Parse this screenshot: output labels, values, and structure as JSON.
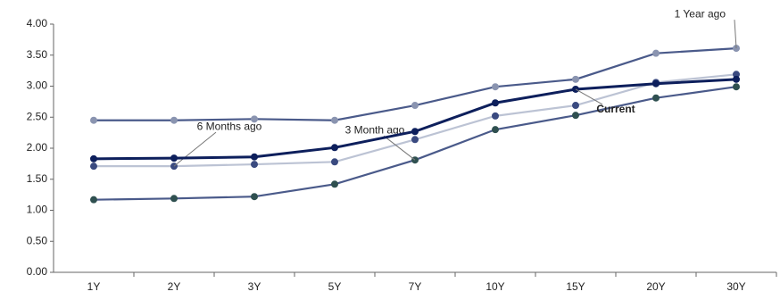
{
  "chart_data": {
    "type": "line",
    "categories": [
      "1Y",
      "2Y",
      "3Y",
      "5Y",
      "7Y",
      "10Y",
      "15Y",
      "20Y",
      "30Y"
    ],
    "ylim": [
      0,
      4
    ],
    "yticks": [
      {
        "value": 0,
        "label": "0.00"
      },
      {
        "value": 0.5,
        "label": "0.50"
      },
      {
        "value": 1,
        "label": "1.00"
      },
      {
        "value": 1.5,
        "label": "1.50"
      },
      {
        "value": 2,
        "label": "2.00"
      },
      {
        "value": 2.5,
        "label": "2.50"
      },
      {
        "value": 3,
        "label": "3.00"
      },
      {
        "value": 3.5,
        "label": "3.50"
      },
      {
        "value": 4,
        "label": "4.00"
      }
    ],
    "series": [
      {
        "name": "1 Year ago",
        "color": "#4a5a8a",
        "marker_color": "#8a94b0",
        "values": [
          2.45,
          2.45,
          2.47,
          2.45,
          2.69,
          2.99,
          3.11,
          3.53,
          3.61
        ]
      },
      {
        "name": "6 Months ago",
        "color": "#bcc3d4",
        "marker_color": "#3a4a80",
        "values": [
          1.71,
          1.71,
          1.74,
          1.78,
          2.14,
          2.52,
          2.69,
          3.06,
          3.19
        ]
      },
      {
        "name": "3 Month ago",
        "color": "#4a5a8a",
        "marker_color": "#2f5050",
        "values": [
          1.17,
          1.19,
          1.22,
          1.42,
          1.81,
          2.3,
          2.53,
          2.81,
          2.99
        ]
      },
      {
        "name": "Current",
        "color": "#0d1f5c",
        "marker_color": "#0d1f5c",
        "values": [
          1.83,
          1.84,
          1.86,
          2.01,
          2.27,
          2.73,
          2.95,
          3.04,
          3.11
        ]
      }
    ]
  }
}
